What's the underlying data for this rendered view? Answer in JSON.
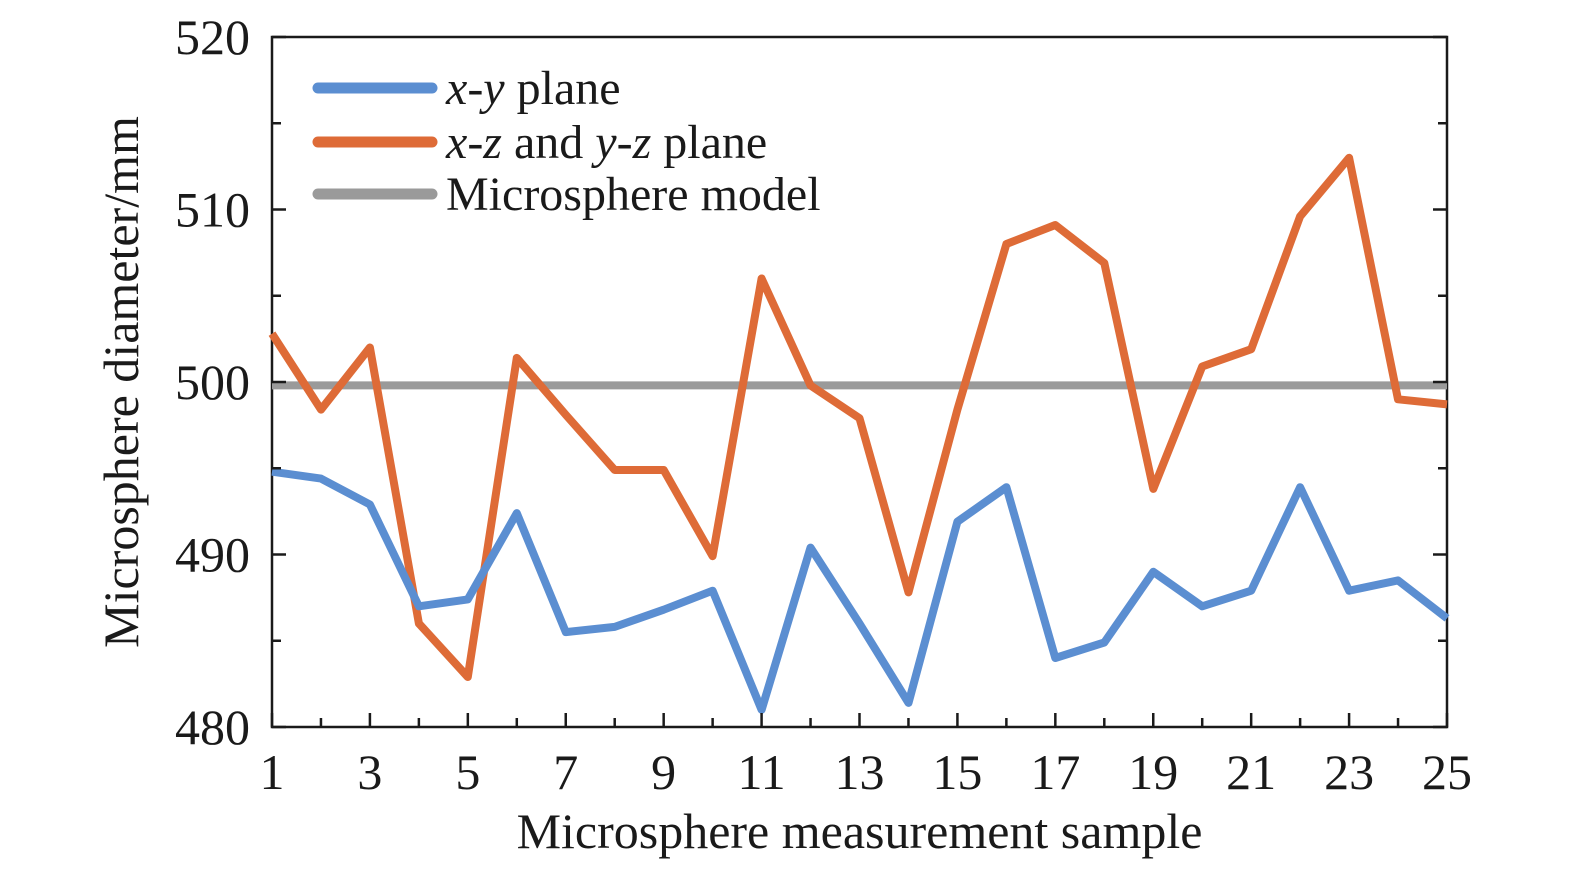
{
  "chart_data": {
    "type": "line",
    "xlabel": "Microsphere measurement sample",
    "ylabel": "Microsphere diameter/mm",
    "xlim": [
      1,
      25
    ],
    "ylim": [
      480,
      520
    ],
    "x_ticks": [
      "1",
      "3",
      "5",
      "7",
      "9",
      "11",
      "13",
      "15",
      "17",
      "19",
      "21",
      "23",
      "25"
    ],
    "y_ticks": [
      "480",
      "490",
      "500",
      "510",
      "520"
    ],
    "x": [
      1,
      2,
      3,
      4,
      5,
      6,
      7,
      8,
      9,
      10,
      11,
      12,
      13,
      14,
      15,
      16,
      17,
      18,
      19,
      20,
      21,
      22,
      23,
      24,
      25
    ],
    "legend_position": "top-left",
    "grid": false,
    "series": [
      {
        "name": "x-y plane",
        "color": "#5b8ed1",
        "values": [
          494.8,
          494.4,
          492.9,
          487.0,
          487.4,
          492.4,
          485.5,
          485.8,
          486.8,
          487.9,
          481.0,
          490.4,
          486.0,
          481.4,
          491.9,
          493.9,
          484.0,
          484.9,
          489.0,
          487.0,
          487.9,
          493.9,
          487.9,
          488.5,
          486.3
        ]
      },
      {
        "name": "x-z and y-z plane",
        "color": "#de6b37",
        "values": [
          502.8,
          498.4,
          502.0,
          486.0,
          482.9,
          501.4,
          498.1,
          494.9,
          494.9,
          489.9,
          506.0,
          499.8,
          497.9,
          487.8,
          498.4,
          508.0,
          509.1,
          506.9,
          493.8,
          500.9,
          501.9,
          509.6,
          513.0,
          499.0,
          498.7
        ]
      },
      {
        "name": "Microsphere model",
        "color": "#9a9a9a",
        "values": [
          499.8,
          499.8,
          499.8,
          499.8,
          499.8,
          499.8,
          499.8,
          499.8,
          499.8,
          499.8,
          499.8,
          499.8,
          499.8,
          499.8,
          499.8,
          499.8,
          499.8,
          499.8,
          499.8,
          499.8,
          499.8,
          499.8,
          499.8,
          499.8,
          499.8
        ]
      }
    ]
  }
}
